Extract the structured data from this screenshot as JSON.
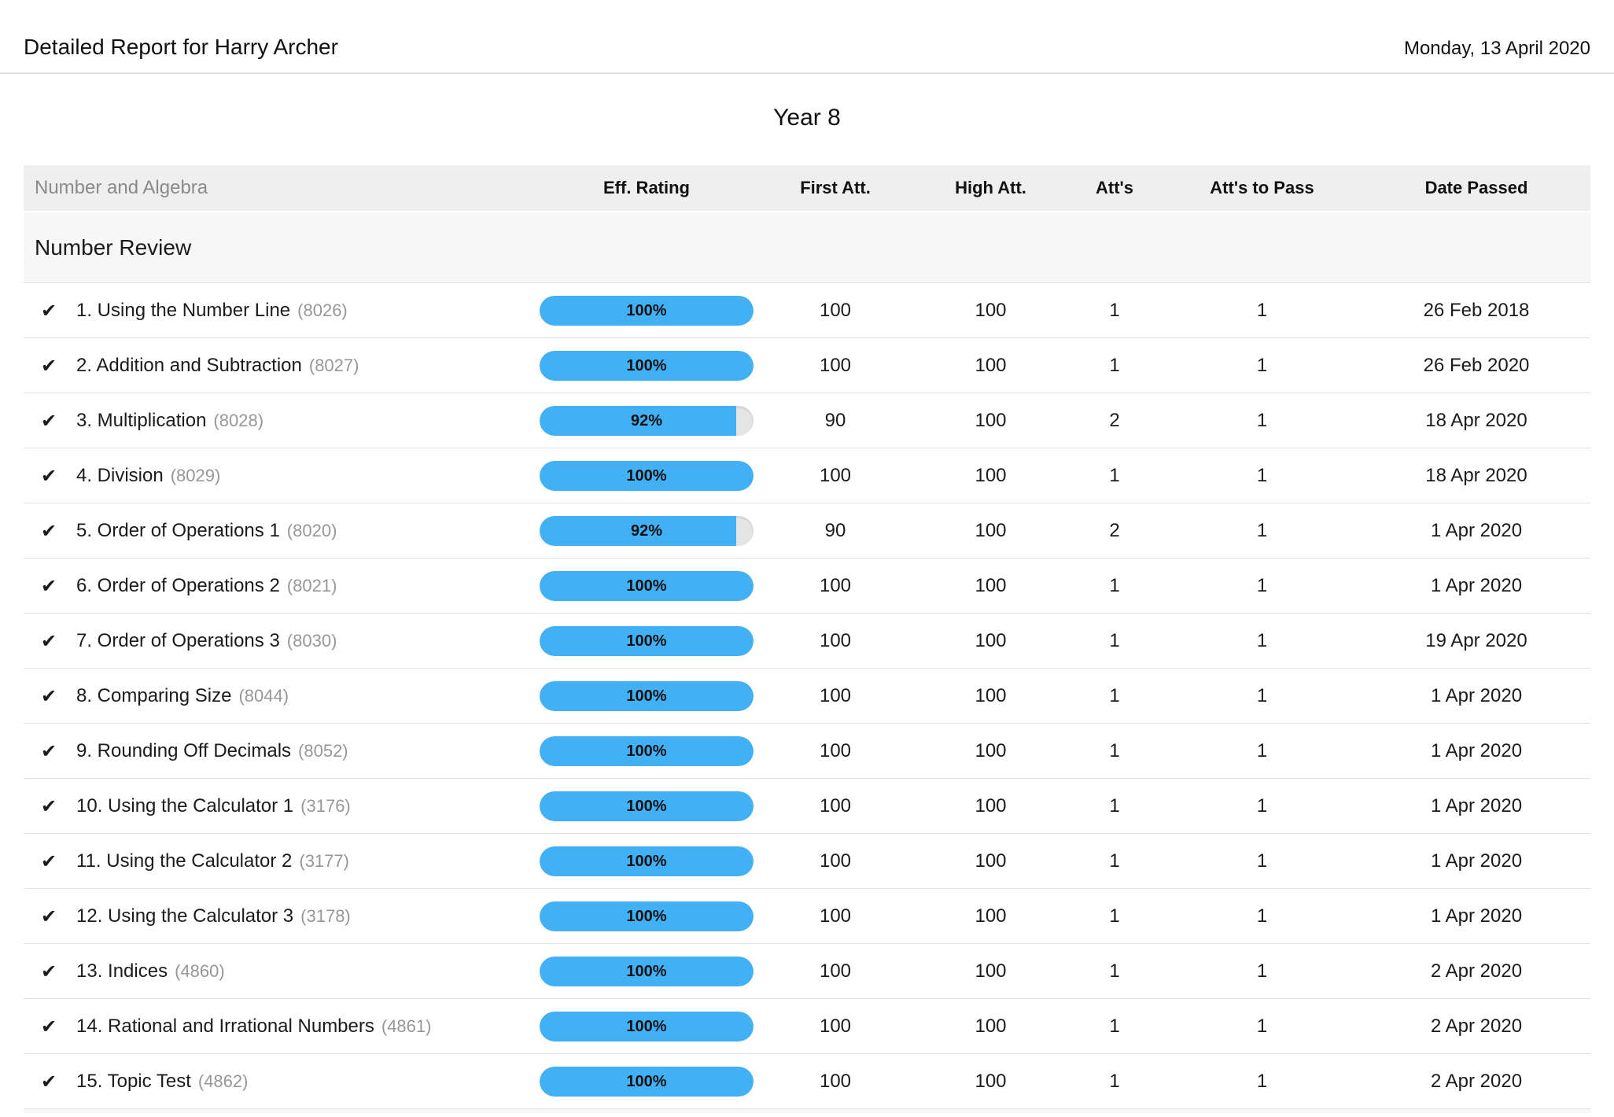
{
  "header": {
    "title": "Detailed Report for Harry Archer",
    "date": "Monday, 13 April 2020"
  },
  "year_title": "Year 8",
  "colors": {
    "accent_blue": "#42b0f4",
    "pill_track": "#e5e5e5",
    "header_bg": "#efefef",
    "section_bg": "#f7f7f7"
  },
  "icons": {
    "passed_check": "✔"
  },
  "table": {
    "strand_label": "Number and Algebra",
    "columns": {
      "eff_rating": "Eff. Rating",
      "first_att": "First Att.",
      "high_att": "High Att.",
      "atts": "Att's",
      "atts_to_pass": "Att's to Pass",
      "date_passed": "Date Passed"
    },
    "section_title": "Number Review",
    "rows": [
      {
        "name": "1. Using the Number Line",
        "code": "(8026)",
        "rating": 100,
        "rating_label": "100%",
        "first_att": "100",
        "high_att": "100",
        "atts": "1",
        "atts_to_pass": "1",
        "date_passed": "26 Feb 2018"
      },
      {
        "name": "2. Addition and Subtraction",
        "code": "(8027)",
        "rating": 100,
        "rating_label": "100%",
        "first_att": "100",
        "high_att": "100",
        "atts": "1",
        "atts_to_pass": "1",
        "date_passed": "26 Feb 2020"
      },
      {
        "name": "3. Multiplication",
        "code": "(8028)",
        "rating": 92,
        "rating_label": "92%",
        "first_att": "90",
        "high_att": "100",
        "atts": "2",
        "atts_to_pass": "1",
        "date_passed": "18 Apr 2020"
      },
      {
        "name": "4. Division",
        "code": "(8029)",
        "rating": 100,
        "rating_label": "100%",
        "first_att": "100",
        "high_att": "100",
        "atts": "1",
        "atts_to_pass": "1",
        "date_passed": "18 Apr 2020"
      },
      {
        "name": "5. Order of Operations 1",
        "code": "(8020)",
        "rating": 92,
        "rating_label": "92%",
        "first_att": "90",
        "high_att": "100",
        "atts": "2",
        "atts_to_pass": "1",
        "date_passed": "1 Apr 2020"
      },
      {
        "name": "6. Order of Operations 2",
        "code": "(8021)",
        "rating": 100,
        "rating_label": "100%",
        "first_att": "100",
        "high_att": "100",
        "atts": "1",
        "atts_to_pass": "1",
        "date_passed": "1 Apr 2020"
      },
      {
        "name": "7. Order of Operations 3",
        "code": "(8030)",
        "rating": 100,
        "rating_label": "100%",
        "first_att": "100",
        "high_att": "100",
        "atts": "1",
        "atts_to_pass": "1",
        "date_passed": "19 Apr 2020"
      },
      {
        "name": "8. Comparing Size",
        "code": "(8044)",
        "rating": 100,
        "rating_label": "100%",
        "first_att": "100",
        "high_att": "100",
        "atts": "1",
        "atts_to_pass": "1",
        "date_passed": "1 Apr 2020"
      },
      {
        "name": "9. Rounding Off Decimals",
        "code": "(8052)",
        "rating": 100,
        "rating_label": "100%",
        "first_att": "100",
        "high_att": "100",
        "atts": "1",
        "atts_to_pass": "1",
        "date_passed": "1 Apr 2020"
      },
      {
        "name": "10. Using the Calculator 1",
        "code": "(3176)",
        "rating": 100,
        "rating_label": "100%",
        "first_att": "100",
        "high_att": "100",
        "atts": "1",
        "atts_to_pass": "1",
        "date_passed": "1 Apr 2020"
      },
      {
        "name": "11. Using the Calculator 2",
        "code": "(3177)",
        "rating": 100,
        "rating_label": "100%",
        "first_att": "100",
        "high_att": "100",
        "atts": "1",
        "atts_to_pass": "1",
        "date_passed": "1 Apr 2020"
      },
      {
        "name": "12. Using the Calculator 3",
        "code": "(3178)",
        "rating": 100,
        "rating_label": "100%",
        "first_att": "100",
        "high_att": "100",
        "atts": "1",
        "atts_to_pass": "1",
        "date_passed": "1 Apr 2020"
      },
      {
        "name": "13. Indices",
        "code": "(4860)",
        "rating": 100,
        "rating_label": "100%",
        "first_att": "100",
        "high_att": "100",
        "atts": "1",
        "atts_to_pass": "1",
        "date_passed": "2 Apr 2020"
      },
      {
        "name": "14. Rational and Irrational Numbers",
        "code": "(4861)",
        "rating": 100,
        "rating_label": "100%",
        "first_att": "100",
        "high_att": "100",
        "atts": "1",
        "atts_to_pass": "1",
        "date_passed": "2 Apr 2020"
      },
      {
        "name": "15. Topic Test",
        "code": "(4862)",
        "rating": 100,
        "rating_label": "100%",
        "first_att": "100",
        "high_att": "100",
        "atts": "1",
        "atts_to_pass": "1",
        "date_passed": "2 Apr 2020"
      }
    ]
  }
}
